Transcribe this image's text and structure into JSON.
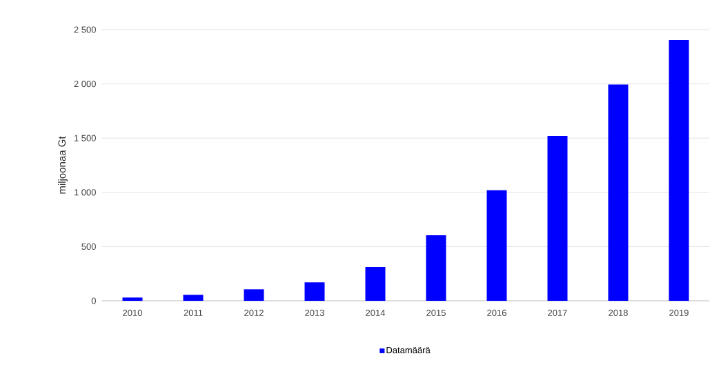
{
  "chart_data": {
    "type": "bar",
    "ylabel": "miljoonaa Gt",
    "categories": [
      "2010",
      "2011",
      "2012",
      "2013",
      "2014",
      "2015",
      "2016",
      "2017",
      "2018",
      "2019"
    ],
    "series": [
      {
        "name": "Datamäärä",
        "color": "#0000ff",
        "values": [
          30,
          55,
          106,
          170,
          312,
          604,
          1020,
          1520,
          1995,
          2405
        ]
      }
    ],
    "ylim": [
      0,
      2500
    ],
    "yticks": [
      {
        "value": 0,
        "label": "0"
      },
      {
        "value": 500,
        "label": "500"
      },
      {
        "value": 1000,
        "label": "1 000"
      },
      {
        "value": 1500,
        "label": "1 500"
      },
      {
        "value": 2000,
        "label": "2 000"
      },
      {
        "value": 2500,
        "label": "2 500"
      }
    ],
    "grid": "y",
    "legend": "bottom"
  }
}
